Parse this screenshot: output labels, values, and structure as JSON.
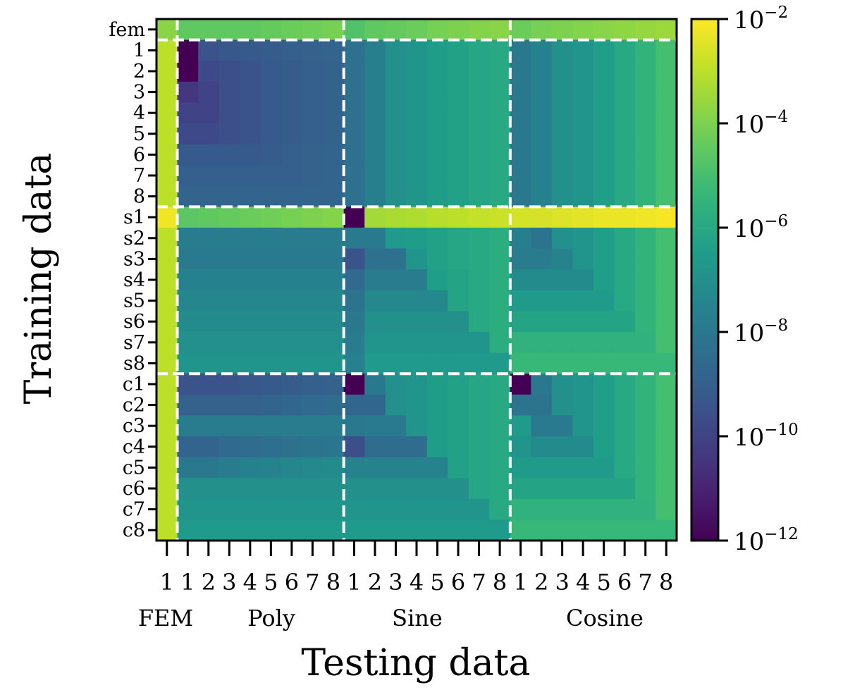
{
  "chart_data": {
    "type": "heatmap",
    "title": "",
    "xlabel": "Testing data",
    "ylabel": "Training data",
    "row_labels": [
      "fem",
      "1",
      "2",
      "3",
      "4",
      "5",
      "6",
      "7",
      "8",
      "s1",
      "s2",
      "s3",
      "s4",
      "s5",
      "s6",
      "s7",
      "s8",
      "c1",
      "c2",
      "c3",
      "c4",
      "c5",
      "c6",
      "c7",
      "c8"
    ],
    "col_tick_labels": [
      "1",
      "1",
      "2",
      "3",
      "4",
      "5",
      "6",
      "7",
      "8",
      "1",
      "2",
      "3",
      "4",
      "5",
      "6",
      "7",
      "8",
      "1",
      "2",
      "3",
      "4",
      "5",
      "6",
      "7",
      "8"
    ],
    "col_groups": [
      {
        "name": "FEM",
        "start": 0,
        "end": 0
      },
      {
        "name": "Poly",
        "start": 1,
        "end": 8
      },
      {
        "name": "Sine",
        "start": 9,
        "end": 16
      },
      {
        "name": "Cosine",
        "start": 17,
        "end": 24
      }
    ],
    "scale": "log10",
    "colorbar": {
      "min_exponent": -12,
      "max_exponent": -2,
      "tick_exponents": [
        -12,
        -10,
        -8,
        -6,
        -4,
        -2
      ],
      "tick_labels": [
        "10^-12",
        "10^-10",
        "10^-8",
        "10^-6",
        "10^-4",
        "10^-2"
      ]
    },
    "log10_values": [
      [
        -3.8,
        -4.5,
        -4.5,
        -4.5,
        -4.5,
        -4.4,
        -4.3,
        -4.2,
        -4.1,
        -4.8,
        -4.5,
        -4.4,
        -4.3,
        -4.1,
        -4.0,
        -3.9,
        -3.8,
        -4.3,
        -4.1,
        -4.0,
        -3.9,
        -3.8,
        -3.7,
        -3.6,
        -3.5
      ],
      [
        -3.0,
        -12.0,
        -9.5,
        -9.3,
        -9.2,
        -9.1,
        -9.0,
        -8.9,
        -8.8,
        -8.3,
        -7.7,
        -7.0,
        -6.8,
        -6.5,
        -6.3,
        -6.1,
        -6.0,
        -8.0,
        -7.6,
        -7.0,
        -6.8,
        -6.4,
        -6.0,
        -5.5,
        -5.0
      ],
      [
        -3.0,
        -12.0,
        -9.8,
        -9.6,
        -9.4,
        -9.2,
        -9.1,
        -9.0,
        -8.9,
        -8.3,
        -7.7,
        -7.0,
        -6.8,
        -6.5,
        -6.3,
        -6.1,
        -6.0,
        -8.0,
        -7.6,
        -7.0,
        -6.8,
        -6.4,
        -6.0,
        -5.5,
        -5.0
      ],
      [
        -3.0,
        -10.4,
        -10.0,
        -9.6,
        -9.4,
        -9.2,
        -9.1,
        -9.0,
        -8.9,
        -8.3,
        -7.7,
        -7.0,
        -6.8,
        -6.5,
        -6.3,
        -6.1,
        -6.0,
        -8.0,
        -7.6,
        -7.0,
        -6.8,
        -6.4,
        -6.0,
        -5.5,
        -5.0
      ],
      [
        -3.0,
        -10.0,
        -10.0,
        -9.6,
        -9.4,
        -9.2,
        -9.1,
        -9.0,
        -8.9,
        -8.3,
        -7.7,
        -7.0,
        -6.8,
        -6.5,
        -6.3,
        -6.1,
        -6.0,
        -8.0,
        -7.6,
        -7.0,
        -6.8,
        -6.4,
        -6.0,
        -5.5,
        -5.0
      ],
      [
        -3.0,
        -9.8,
        -9.8,
        -9.6,
        -9.4,
        -9.2,
        -9.1,
        -9.0,
        -8.9,
        -8.3,
        -7.7,
        -7.0,
        -6.8,
        -6.5,
        -6.3,
        -6.1,
        -6.0,
        -8.0,
        -7.6,
        -7.0,
        -6.8,
        -6.4,
        -6.0,
        -5.5,
        -5.0
      ],
      [
        -3.0,
        -9.2,
        -9.2,
        -9.2,
        -9.2,
        -9.1,
        -9.0,
        -8.9,
        -8.8,
        -8.3,
        -7.7,
        -7.0,
        -6.8,
        -6.5,
        -6.3,
        -6.1,
        -6.0,
        -8.0,
        -7.6,
        -7.0,
        -6.8,
        -6.4,
        -6.0,
        -5.5,
        -5.0
      ],
      [
        -3.0,
        -9.0,
        -9.0,
        -9.0,
        -9.0,
        -9.0,
        -9.0,
        -8.9,
        -8.8,
        -8.3,
        -7.7,
        -7.0,
        -6.8,
        -6.5,
        -6.3,
        -6.1,
        -6.0,
        -8.0,
        -7.6,
        -7.0,
        -6.8,
        -6.4,
        -6.0,
        -5.5,
        -5.0
      ],
      [
        -3.0,
        -8.8,
        -8.8,
        -8.8,
        -8.8,
        -8.8,
        -8.8,
        -8.8,
        -8.8,
        -8.3,
        -7.7,
        -7.0,
        -6.8,
        -6.5,
        -6.3,
        -6.1,
        -6.0,
        -8.0,
        -7.6,
        -7.0,
        -6.8,
        -6.4,
        -6.0,
        -5.5,
        -5.0
      ],
      [
        -2.2,
        -4.6,
        -4.5,
        -4.4,
        -4.3,
        -4.2,
        -4.1,
        -4.0,
        -3.9,
        -12.0,
        -3.4,
        -3.3,
        -3.2,
        -3.1,
        -3.0,
        -2.9,
        -2.8,
        -2.6,
        -2.6,
        -2.5,
        -2.4,
        -2.3,
        -2.3,
        -2.2,
        -2.1
      ],
      [
        -3.0,
        -7.8,
        -7.8,
        -7.8,
        -7.8,
        -7.8,
        -7.8,
        -7.8,
        -7.8,
        -7.9,
        -7.9,
        -6.6,
        -6.5,
        -6.3,
        -6.1,
        -6.0,
        -5.8,
        -7.7,
        -8.2,
        -7.0,
        -6.8,
        -6.4,
        -6.0,
        -5.5,
        -5.0
      ],
      [
        -3.0,
        -7.9,
        -7.9,
        -7.9,
        -7.9,
        -7.9,
        -7.9,
        -7.9,
        -7.9,
        -9.4,
        -8.3,
        -8.3,
        -6.8,
        -6.3,
        -6.1,
        -6.0,
        -5.8,
        -7.8,
        -7.8,
        -7.5,
        -6.8,
        -6.4,
        -6.0,
        -5.5,
        -5.0
      ],
      [
        -3.0,
        -7.6,
        -7.6,
        -7.6,
        -7.6,
        -7.6,
        -7.6,
        -7.6,
        -7.6,
        -8.6,
        -7.8,
        -7.8,
        -7.8,
        -6.4,
        -6.2,
        -6.0,
        -5.8,
        -7.2,
        -7.2,
        -7.2,
        -7.2,
        -6.4,
        -6.0,
        -5.5,
        -5.0
      ],
      [
        -3.0,
        -7.4,
        -7.4,
        -7.4,
        -7.4,
        -7.4,
        -7.4,
        -7.4,
        -7.4,
        -8.2,
        -7.3,
        -7.3,
        -7.3,
        -7.3,
        -6.2,
        -6.0,
        -5.8,
        -6.6,
        -6.6,
        -6.6,
        -6.6,
        -6.6,
        -6.0,
        -5.5,
        -5.0
      ],
      [
        -3.0,
        -7.2,
        -7.2,
        -7.2,
        -7.2,
        -7.2,
        -7.2,
        -7.2,
        -7.2,
        -8.0,
        -7.0,
        -7.0,
        -7.0,
        -7.0,
        -7.0,
        -6.0,
        -5.8,
        -6.2,
        -6.2,
        -6.2,
        -6.2,
        -6.2,
        -6.2,
        -5.5,
        -5.0
      ],
      [
        -3.0,
        -7.0,
        -7.0,
        -7.0,
        -7.0,
        -7.0,
        -7.0,
        -7.0,
        -7.0,
        -7.8,
        -6.8,
        -6.8,
        -6.8,
        -6.8,
        -6.8,
        -6.8,
        -5.8,
        -5.6,
        -5.6,
        -5.6,
        -5.6,
        -5.6,
        -5.6,
        -5.6,
        -5.0
      ],
      [
        -3.0,
        -6.8,
        -6.8,
        -6.8,
        -6.8,
        -6.8,
        -6.8,
        -6.8,
        -6.8,
        -7.6,
        -6.6,
        -6.6,
        -6.6,
        -6.6,
        -6.6,
        -6.6,
        -6.6,
        -5.3,
        -5.3,
        -5.3,
        -5.3,
        -5.3,
        -5.3,
        -5.3,
        -5.3
      ],
      [
        -3.0,
        -9.4,
        -9.4,
        -9.4,
        -9.3,
        -9.2,
        -9.1,
        -9.0,
        -8.9,
        -12.0,
        -8.0,
        -7.0,
        -6.8,
        -6.5,
        -6.3,
        -6.1,
        -6.0,
        -12.0,
        -8.0,
        -7.0,
        -6.8,
        -6.4,
        -6.0,
        -5.5,
        -5.0
      ],
      [
        -3.0,
        -8.9,
        -8.9,
        -8.9,
        -8.9,
        -8.8,
        -8.7,
        -8.6,
        -8.5,
        -8.7,
        -8.7,
        -7.0,
        -6.8,
        -6.5,
        -6.3,
        -6.1,
        -6.0,
        -8.2,
        -8.2,
        -7.0,
        -6.8,
        -6.4,
        -6.0,
        -5.5,
        -5.0
      ],
      [
        -3.0,
        -7.8,
        -7.8,
        -7.8,
        -7.8,
        -7.8,
        -7.8,
        -7.8,
        -7.8,
        -8.0,
        -7.9,
        -7.9,
        -6.8,
        -6.5,
        -6.3,
        -6.1,
        -6.0,
        -6.6,
        -7.9,
        -7.9,
        -6.8,
        -6.4,
        -6.0,
        -5.5,
        -5.0
      ],
      [
        -3.0,
        -8.8,
        -8.8,
        -8.6,
        -8.5,
        -8.4,
        -8.3,
        -8.2,
        -8.1,
        -9.6,
        -8.5,
        -8.5,
        -8.5,
        -6.5,
        -6.3,
        -6.1,
        -6.0,
        -6.8,
        -7.2,
        -7.2,
        -7.2,
        -6.4,
        -6.0,
        -5.5,
        -5.0
      ],
      [
        -3.0,
        -8.0,
        -8.0,
        -7.8,
        -7.6,
        -7.5,
        -7.4,
        -7.3,
        -7.2,
        -7.5,
        -7.5,
        -7.5,
        -7.5,
        -7.5,
        -6.3,
        -6.1,
        -6.0,
        -6.6,
        -6.6,
        -6.6,
        -6.6,
        -6.6,
        -6.0,
        -5.5,
        -5.0
      ],
      [
        -3.0,
        -7.0,
        -7.0,
        -7.0,
        -7.0,
        -7.0,
        -7.0,
        -7.0,
        -7.0,
        -7.0,
        -7.0,
        -7.0,
        -7.0,
        -7.0,
        -7.0,
        -6.1,
        -6.0,
        -6.2,
        -6.2,
        -6.2,
        -6.2,
        -6.2,
        -6.2,
        -5.5,
        -5.0
      ],
      [
        -3.0,
        -6.8,
        -6.8,
        -6.8,
        -6.8,
        -6.8,
        -6.8,
        -6.8,
        -6.8,
        -6.8,
        -6.8,
        -6.8,
        -6.8,
        -6.8,
        -6.8,
        -6.8,
        -6.0,
        -5.6,
        -5.6,
        -5.6,
        -5.6,
        -5.6,
        -5.6,
        -5.6,
        -5.0
      ],
      [
        -3.0,
        -6.6,
        -6.6,
        -6.6,
        -6.6,
        -6.6,
        -6.6,
        -6.6,
        -6.6,
        -6.6,
        -6.6,
        -6.6,
        -6.6,
        -6.6,
        -6.6,
        -6.6,
        -6.6,
        -5.3,
        -5.3,
        -5.3,
        -5.3,
        -5.3,
        -5.3,
        -5.3,
        -5.3
      ]
    ],
    "group_separators_after": [
      0,
      8,
      16
    ]
  }
}
